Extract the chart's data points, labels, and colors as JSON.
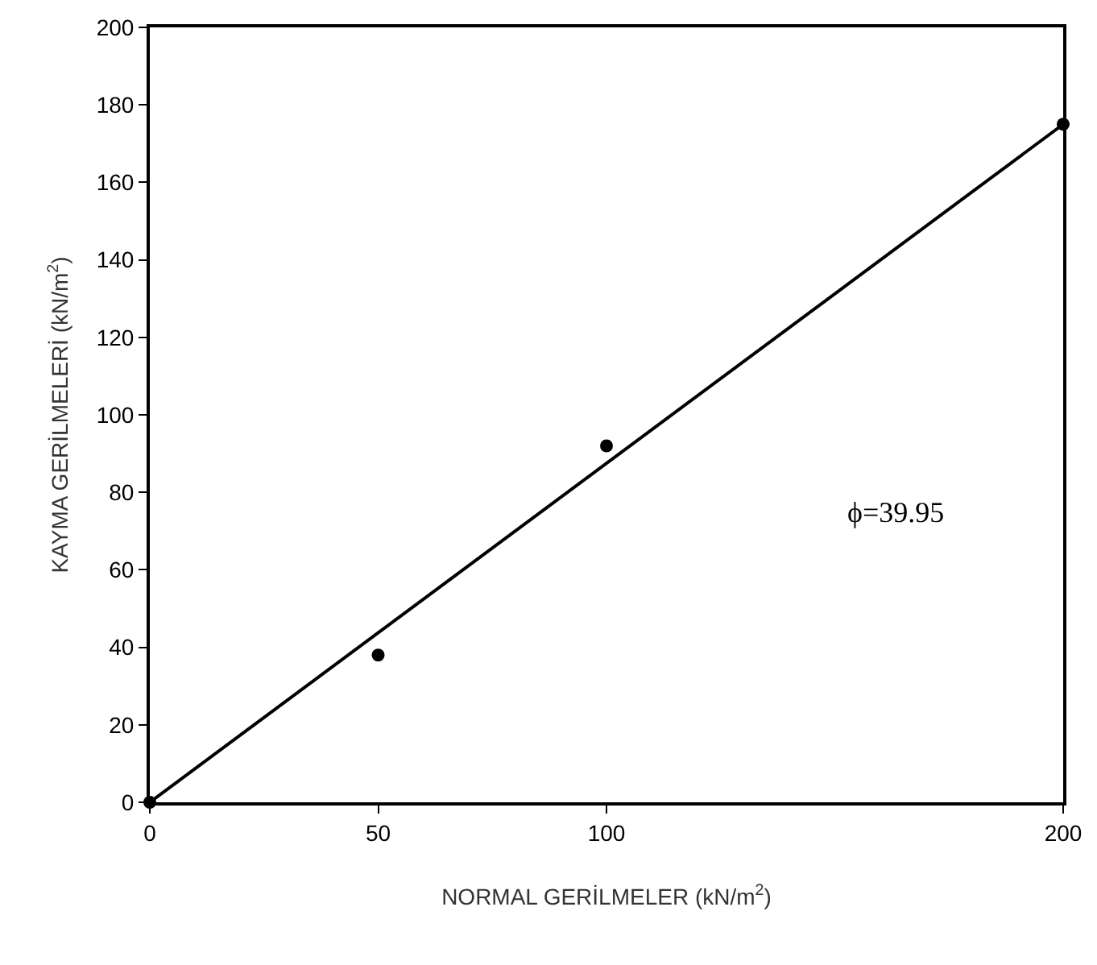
{
  "chart_data": {
    "type": "scatter",
    "xlabel": "NORMAL GERİLMELER (kN/m$^{2}$)",
    "ylabel": "KAYMA GERİLMELERİ (kN/m$^{2}$)",
    "series": [
      {
        "type": "scatter",
        "color": "#000000",
        "x": [
          0,
          50,
          100,
          200
        ],
        "values": [
          0,
          38,
          92,
          175
        ],
        "marker": "circle"
      },
      {
        "type": "line",
        "color": "#000000",
        "x": [
          0,
          200
        ],
        "values": [
          0,
          175
        ],
        "marker": "none"
      }
    ],
    "line_style": "solid",
    "xlim": [
      0,
      200
    ],
    "xticks": [
      0,
      50,
      100,
      200
    ],
    "ylim": [
      0,
      200
    ],
    "yticks": [
      0,
      20,
      40,
      60,
      80,
      100,
      120,
      140,
      160,
      180,
      200
    ],
    "grid": false,
    "annotations": [
      "ϕ=39.95"
    ]
  }
}
